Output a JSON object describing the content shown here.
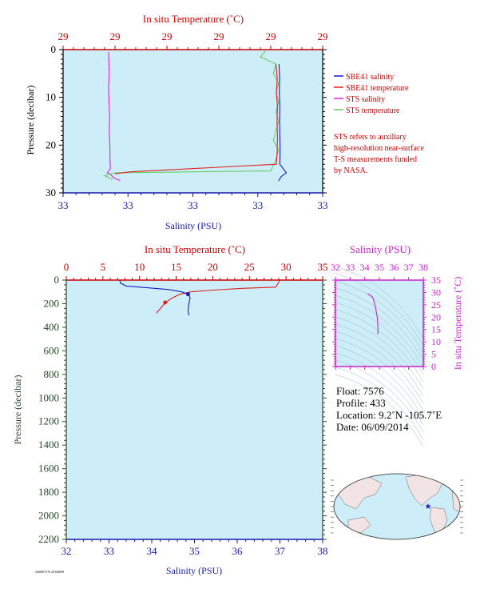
{
  "chart_data": [
    {
      "id": "upper",
      "type": "line",
      "top_axis": {
        "label": "In situ Temperature (˚C)",
        "ticks": [
          "29",
          "29",
          "29",
          "29",
          "29",
          "29"
        ]
      },
      "bottom_axis": {
        "label": "Salinity (PSU)",
        "ticks": [
          "33",
          "33",
          "33",
          "33",
          "33"
        ]
      },
      "left_axis": {
        "label": "Pressure (decibar)",
        "ticks": [
          "0",
          "10",
          "20",
          "30"
        ],
        "ylim": [
          0,
          30
        ]
      },
      "legend": [
        {
          "name": "SBE41 salinity",
          "color": "#1a1acc"
        },
        {
          "name": "SBE41 temperature",
          "color": "#dd2222"
        },
        {
          "name": "STS salinity",
          "color": "#dd22dd"
        },
        {
          "name": "STS temperature",
          "color": "#66cc66"
        }
      ],
      "note": [
        "STS refers to auxiliary",
        "high-resolution near-surface",
        "T-S measurements funded",
        "by NASA."
      ],
      "series": [
        {
          "name": "STS salinity",
          "color": "#dd22dd",
          "x": [
            0.175,
            0.176,
            0.178,
            0.175,
            0.177,
            0.179,
            0.178,
            0.18,
            0.181,
            0.182,
            0.17,
            0.185,
            0.19,
            0.2,
            0.22
          ],
          "y": [
            0.5,
            2,
            5,
            8,
            11,
            14,
            17,
            20,
            23,
            25,
            25.8,
            26.2,
            26.6,
            27,
            27.4
          ]
        },
        {
          "name": "STS temperature",
          "color": "#66cc66",
          "x": [
            0.78,
            0.76,
            0.82,
            0.81,
            0.83,
            0.82,
            0.83,
            0.82,
            0.83,
            0.82,
            0.81,
            0.83,
            0.82,
            0.8,
            0.2,
            0.16,
            0.19
          ],
          "y": [
            0.3,
            1.5,
            3,
            5,
            7,
            9,
            11,
            13,
            15,
            17,
            19,
            21,
            23,
            25.4,
            25.8,
            26.4,
            27.2
          ]
        },
        {
          "name": "SBE41 salinity",
          "color": "#1a1acc",
          "x": [
            0.832,
            0.834,
            0.833,
            0.835,
            0.834,
            0.835,
            0.836,
            0.835,
            0.86,
            0.84,
            0.83
          ],
          "y": [
            3,
            6,
            9,
            12,
            15,
            18,
            21,
            24,
            25.8,
            26.6,
            27.5
          ]
        },
        {
          "name": "SBE41 temperature",
          "color": "#dd2222",
          "x": [
            0.82,
            0.825,
            0.822,
            0.826,
            0.824,
            0.826,
            0.825,
            0.822,
            0.26,
            0.2
          ],
          "y": [
            3,
            6,
            9,
            12,
            15,
            18,
            21,
            24,
            25.6,
            26
          ]
        }
      ]
    },
    {
      "id": "lower",
      "type": "line",
      "top_axis": {
        "label": "In situ Temperature (˚C)",
        "ticks": [
          "0",
          "5",
          "10",
          "15",
          "20",
          "25",
          "30",
          "35"
        ],
        "xlim": [
          0,
          35
        ]
      },
      "bottom_axis": {
        "label": "Salinity (PSU)",
        "ticks": [
          "32",
          "33",
          "34",
          "35",
          "36",
          "37",
          "38"
        ],
        "xlim": [
          32,
          38
        ]
      },
      "left_axis": {
        "label": "Pressure (decibar)",
        "ticks": [
          "0",
          "200",
          "400",
          "600",
          "800",
          "1000",
          "1200",
          "1400",
          "1600",
          "1800",
          "2000",
          "2200"
        ],
        "ylim": [
          0,
          2200
        ]
      },
      "series": [
        {
          "name": "temperature",
          "color": "#dd2222",
          "t": [
            29.1,
            29.0,
            28.8,
            28.6,
            24,
            20,
            17,
            15.5,
            14.5,
            13.5,
            13.0,
            12.3
          ],
          "p": [
            0,
            20,
            40,
            60,
            70,
            85,
            100,
            120,
            150,
            190,
            230,
            280
          ]
        },
        {
          "name": "salinity",
          "color": "#1a1acc",
          "s": [
            33.25,
            33.27,
            33.4,
            33.9,
            34.4,
            34.7,
            34.85,
            34.9,
            34.88,
            34.86,
            34.85,
            34.87
          ],
          "p": [
            0,
            25,
            50,
            65,
            80,
            100,
            120,
            150,
            180,
            220,
            260,
            300
          ]
        }
      ]
    },
    {
      "id": "ts-inset",
      "type": "line",
      "top_axis": {
        "label": "Salinity (PSU)",
        "ticks": [
          "32",
          "33",
          "34",
          "35",
          "36",
          "37",
          "38"
        ],
        "xlim": [
          32,
          38
        ]
      },
      "right_axis": {
        "label": "In situ Temperature (˚C)",
        "ticks": [
          "0",
          "5",
          "10",
          "15",
          "20",
          "25",
          "30",
          "35"
        ],
        "ylim": [
          0,
          35
        ]
      },
      "series": [
        {
          "name": "T-S",
          "color": "#cc22cc",
          "s": [
            34.2,
            34.35,
            34.55,
            34.7,
            34.8,
            34.85,
            34.88,
            34.9,
            34.9
          ],
          "t": [
            29.5,
            29,
            28,
            25,
            22,
            20,
            18,
            16,
            13
          ]
        }
      ]
    }
  ],
  "info": {
    "float": "Float:  7576",
    "profile": "Profile:  433",
    "location": "Location:  9.2˚N  -105.7˚E",
    "date": "Date:  06/09/2014"
  },
  "footer_code": "AS0007576 20140609"
}
